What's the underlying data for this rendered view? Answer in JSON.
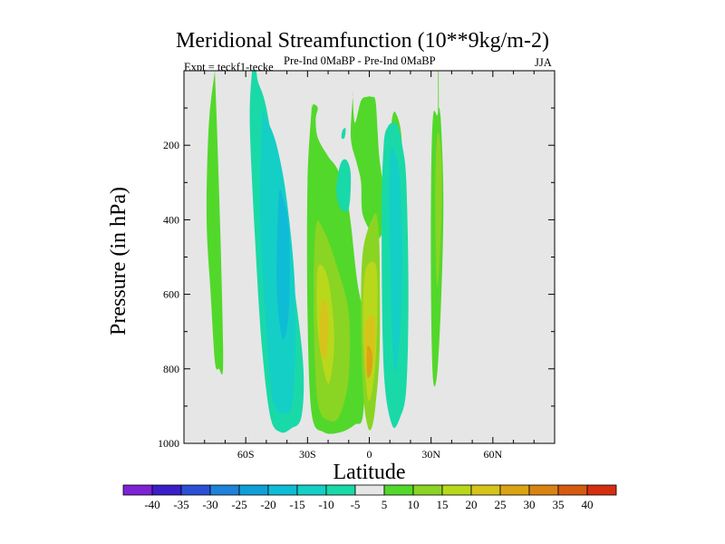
{
  "chart_data": {
    "type": "contour",
    "title": "Meridional Streamfunction (10**9kg/m-2)",
    "subtitle_left": "Expt = teckf1-tecke",
    "subtitle_center": "Pre-Ind 0MaBP - Pre-Ind 0MaBP",
    "subtitle_right": "JJA",
    "xlabel": "Latitude",
    "ylabel": "Pressure (in hPa)",
    "xlim": [
      -90,
      90
    ],
    "ylim": [
      1000,
      0
    ],
    "x_ticks": [
      {
        "value": -60,
        "label": "60S"
      },
      {
        "value": -30,
        "label": "30S"
      },
      {
        "value": 0,
        "label": "0"
      },
      {
        "value": 30,
        "label": "30N"
      },
      {
        "value": 60,
        "label": "60N"
      }
    ],
    "y_ticks": [
      {
        "value": 200,
        "label": "200"
      },
      {
        "value": 400,
        "label": "400"
      },
      {
        "value": 600,
        "label": "600"
      },
      {
        "value": 800,
        "label": "800"
      },
      {
        "value": 1000,
        "label": "1000"
      }
    ],
    "colorbar": {
      "labels": [
        "-40",
        "-35",
        "-30",
        "-25",
        "-20",
        "-15",
        "-10",
        "-5",
        "5",
        "10",
        "15",
        "20",
        "25",
        "30",
        "35",
        "40"
      ],
      "colors": [
        "#7e22d6",
        "#3a1fc9",
        "#2b50d4",
        "#1e82da",
        "#0e9fd9",
        "#0fbcd6",
        "#14cfc6",
        "#1ad9a8",
        "#e6e6e6",
        "#52d82a",
        "#8ad424",
        "#b8d81c",
        "#d6c41a",
        "#dba414",
        "#d98412",
        "#d65a10",
        "#d43010"
      ]
    },
    "regions": [
      {
        "name": "contour-region-far-south-positive",
        "value": 7,
        "lat": [
          -75,
          -78,
          -79,
          -77,
          -75,
          -73,
          -71,
          -72,
          -74,
          -75
        ],
        "p": [
          0,
          150,
          400,
          600,
          780,
          800,
          790,
          500,
          150,
          0
        ]
      },
      {
        "name": "contour-region-south-negative-outer",
        "value": -7,
        "lat": [
          -57,
          -58,
          -55,
          -52,
          -48,
          -43,
          -38,
          -33,
          -32,
          -36,
          -44,
          -50,
          -54,
          -55,
          -57
        ],
        "p": [
          0,
          150,
          500,
          750,
          930,
          970,
          960,
          930,
          800,
          600,
          300,
          100,
          30,
          0,
          0
        ]
      },
      {
        "name": "contour-region-south-negative-inner",
        "value": -12,
        "lat": [
          -52,
          -53,
          -50,
          -47,
          -42,
          -37,
          -36,
          -40,
          -45,
          -50
        ],
        "p": [
          130,
          400,
          700,
          880,
          920,
          880,
          600,
          350,
          200,
          130
        ]
      },
      {
        "name": "contour-region-south-negative-core",
        "value": -17,
        "lat": [
          -44,
          -45,
          -42,
          -39,
          -39,
          -42
        ],
        "p": [
          340,
          580,
          720,
          640,
          430,
          340
        ]
      },
      {
        "name": "contour-region-tropic-south-positive",
        "value": 7,
        "lat": [
          -28,
          -30,
          -30,
          -28,
          -22,
          -14,
          -7,
          -3,
          -2,
          -6,
          -10,
          -15,
          -20,
          -25,
          -26,
          -25,
          -27,
          -28
        ],
        "p": [
          100,
          300,
          650,
          920,
          970,
          970,
          950,
          920,
          700,
          560,
          370,
          270,
          230,
          180,
          130,
          100,
          90,
          100
        ]
      },
      {
        "name": "contour-region-tropic-south-12",
        "value": 12,
        "lat": [
          -26,
          -27,
          -25,
          -19,
          -14,
          -10,
          -10,
          -16,
          -22
        ],
        "p": [
          420,
          650,
          890,
          940,
          920,
          820,
          650,
          520,
          430
        ]
      },
      {
        "name": "contour-region-tropic-south-17",
        "value": 17,
        "lat": [
          -25,
          -25,
          -20,
          -17,
          -20
        ],
        "p": [
          530,
          700,
          840,
          720,
          560
        ]
      },
      {
        "name": "contour-region-tropic-south-22",
        "value": 22,
        "lat": [
          -23,
          -24,
          -21,
          -20
        ],
        "p": [
          620,
          740,
          770,
          650
        ]
      },
      {
        "name": "contour-region-equator-negative",
        "value": -7,
        "lat": [
          -14,
          -16,
          -14,
          -10,
          -9,
          -11
        ],
        "p": [
          250,
          320,
          370,
          370,
          280,
          240
        ]
      },
      {
        "name": "contour-region-tiny-negative",
        "value": -7,
        "lat": [
          -13,
          -13.5,
          -12,
          -11.5
        ],
        "p": [
          160,
          180,
          180,
          155
        ]
      },
      {
        "name": "contour-region-equator-positive",
        "value": 7,
        "lat": [
          -8,
          -9,
          -6,
          -4,
          -3,
          4,
          8,
          12,
          14,
          16,
          16,
          15,
          12,
          10,
          8,
          7,
          5,
          4,
          3,
          1,
          -1,
          -4,
          -7,
          -8
        ],
        "p": [
          70,
          180,
          250,
          300,
          390,
          450,
          410,
          360,
          300,
          280,
          220,
          150,
          110,
          170,
          250,
          300,
          240,
          160,
          80,
          70,
          70,
          80,
          140,
          70
        ]
      },
      {
        "name": "contour-region-equator-12",
        "value": 12,
        "lat": [
          -3,
          -4,
          -3,
          -1,
          1,
          3,
          5,
          5,
          4,
          2
        ],
        "p": [
          480,
          650,
          860,
          950,
          960,
          900,
          750,
          500,
          400,
          390
        ]
      },
      {
        "name": "contour-region-equator-17",
        "value": 17,
        "lat": [
          -2,
          -3,
          -1,
          1,
          3,
          4,
          3
        ],
        "p": [
          540,
          700,
          870,
          870,
          780,
          620,
          520
        ]
      },
      {
        "name": "contour-region-equator-22",
        "value": 22,
        "lat": [
          -2,
          -2,
          0,
          2,
          3,
          2
        ],
        "p": [
          680,
          800,
          820,
          780,
          700,
          660
        ]
      },
      {
        "name": "contour-region-equator-27",
        "value": 27,
        "lat": [
          -1,
          -1,
          1,
          1.5
        ],
        "p": [
          740,
          820,
          810,
          760
        ]
      },
      {
        "name": "contour-region-north-negative",
        "value": -7,
        "lat": [
          7,
          6,
          7,
          11,
          15,
          18,
          19,
          18,
          16,
          14,
          12,
          9
        ],
        "p": [
          200,
          400,
          800,
          950,
          930,
          850,
          600,
          300,
          200,
          150,
          140,
          150
        ]
      },
      {
        "name": "contour-region-north-negative-inner",
        "value": -12,
        "lat": [
          10,
          10,
          12,
          15,
          16,
          15,
          13
        ],
        "p": [
          230,
          500,
          800,
          700,
          500,
          300,
          230
        ]
      },
      {
        "name": "contour-region-far-north-positive",
        "value": 7,
        "lat": [
          31,
          30,
          30,
          31,
          33,
          35,
          36,
          35,
          34,
          33
        ],
        "p": [
          120,
          300,
          620,
          830,
          810,
          600,
          350,
          160,
          100,
          120
        ]
      },
      {
        "name": "contour-region-far-north-12",
        "value": 12,
        "lat": [
          33,
          32,
          33,
          35,
          35
        ],
        "p": [
          170,
          350,
          580,
          400,
          230
        ]
      },
      {
        "name": "contour-region-far-north-spike",
        "value": 7,
        "lat": [
          33.4,
          33.4,
          33.7,
          33.7
        ],
        "p": [
          0,
          130,
          130,
          0
        ]
      }
    ]
  }
}
